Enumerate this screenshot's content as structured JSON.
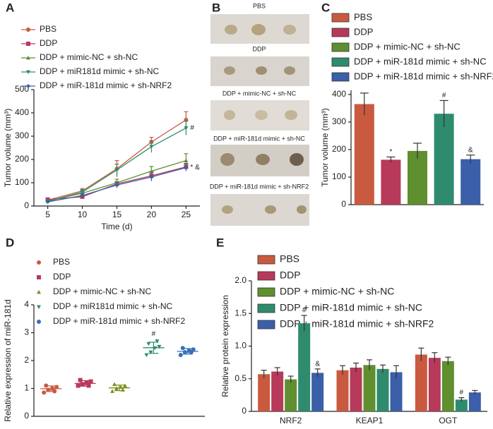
{
  "chart_data": [
    {
      "type": "line",
      "label": "A",
      "xlabel": "Time (d)",
      "ylabel": "Tumor volume (mm³)",
      "x": [
        5,
        10,
        15,
        20,
        25
      ],
      "xlim": [
        3,
        27
      ],
      "xticks": [
        5,
        10,
        15,
        20,
        25
      ],
      "ylim": [
        0,
        500
      ],
      "yticks": [
        0,
        100,
        200,
        300,
        400,
        500
      ],
      "series": [
        {
          "name": "PBS",
          "color": "#c95a3f",
          "marker": "circle",
          "values": [
            25,
            65,
            160,
            275,
            370
          ],
          "errors": [
            5,
            10,
            35,
            20,
            35
          ]
        },
        {
          "name": "DDP",
          "color": "#b83a5b",
          "marker": "square",
          "values": [
            28,
            40,
            95,
            130,
            168
          ],
          "errors": [
            4,
            6,
            10,
            18,
            15
          ]
        },
        {
          "name": "DDP + mimic-NC + sh-NC",
          "color": "#5f8f2e",
          "marker": "triangle",
          "values": [
            22,
            55,
            100,
            150,
            195
          ],
          "errors": [
            4,
            8,
            15,
            20,
            30
          ]
        },
        {
          "name": "DDP + miR181d mimic + sh-NC",
          "color": "#2e8b6e",
          "marker": "triangle-down",
          "values": [
            20,
            60,
            155,
            255,
            335
          ],
          "errors": [
            4,
            10,
            25,
            25,
            30
          ],
          "annotations": [
            null,
            null,
            null,
            null,
            "#"
          ]
        },
        {
          "name": "DDP + miR-181d mimic + sh-NRF2",
          "color": "#3b5fa8",
          "marker": "diamond",
          "values": [
            18,
            45,
            90,
            125,
            165
          ],
          "errors": [
            4,
            8,
            12,
            18,
            15
          ],
          "annotations": [
            null,
            null,
            null,
            null,
            "* &"
          ]
        }
      ]
    },
    {
      "type": "bar",
      "label": "C",
      "ylabel": "Tumor volume (mm³)",
      "ylim": [
        0,
        415
      ],
      "yticks": [
        0,
        100,
        200,
        300,
        400
      ],
      "series": [
        {
          "name": "PBS",
          "color": "#c95a3f",
          "values": [
            365
          ],
          "errors": [
            40
          ]
        },
        {
          "name": "DDP",
          "color": "#b83a5b",
          "values": [
            163
          ],
          "errors": [
            10
          ],
          "annotations": [
            "*"
          ]
        },
        {
          "name": "DDP + mimic-NC + sh-NC",
          "color": "#5f8f2e",
          "values": [
            195
          ],
          "errors": [
            28
          ]
        },
        {
          "name": "DDP + miR-181d mimic + sh-NC",
          "color": "#2e8b6e",
          "values": [
            330
          ],
          "errors": [
            48
          ],
          "annotations": [
            "#"
          ]
        },
        {
          "name": "DDP + miR-181d mimic + sh-NRF2",
          "color": "#3b5fa8",
          "values": [
            165
          ],
          "errors": [
            15
          ],
          "annotations": [
            "&"
          ]
        }
      ]
    },
    {
      "type": "scatter",
      "label": "D",
      "ylabel": "Relative expression of miR-181d",
      "ylim": [
        0,
        4
      ],
      "yticks": [
        0,
        1,
        2,
        3,
        4
      ],
      "series": [
        {
          "name": "PBS",
          "color": "#c95a3f",
          "marker": "circle",
          "values": [
            0.85,
            0.95,
            1.0,
            1.05,
            1.1,
            0.9
          ],
          "mean": 0.99,
          "sd": 0.1
        },
        {
          "name": "DDP",
          "color": "#b83a5b",
          "marker": "square",
          "values": [
            1.1,
            1.15,
            1.2,
            1.25,
            1.3,
            1.1
          ],
          "mean": 1.18,
          "sd": 0.1
        },
        {
          "name": "DDP + mimic-NC + sh-NC",
          "color": "#7a8f1e",
          "marker": "triangle",
          "values": [
            0.9,
            1.0,
            1.05,
            1.1,
            1.15,
            0.95
          ],
          "mean": 1.02,
          "sd": 0.1
        },
        {
          "name": "DDP + miR181d mimic + sh-NC",
          "color": "#2e8b6e",
          "marker": "triangle-down",
          "values": [
            2.2,
            2.3,
            2.45,
            2.5,
            2.6,
            2.7
          ],
          "mean": 2.46,
          "sd": 0.2,
          "annotation": "#"
        },
        {
          "name": "DDP + miR-181d mimic + sh-NRF2",
          "color": "#3b6fb8",
          "marker": "circle",
          "values": [
            2.2,
            2.3,
            2.35,
            2.4,
            2.45,
            2.3
          ],
          "mean": 2.33,
          "sd": 0.1
        }
      ]
    },
    {
      "type": "bar",
      "label": "E",
      "ylabel": "Relative protein expression",
      "categories": [
        "NRF2",
        "KEAP1",
        "OGT"
      ],
      "ylim": [
        0,
        2
      ],
      "yticks": [
        0,
        0.5,
        {
          "value": 1,
          "label": "1.0"
        },
        1.5,
        {
          "value": 2,
          "label": "2.0"
        }
      ],
      "series": [
        {
          "name": "PBS",
          "color": "#c95a3f",
          "values": [
            0.57,
            0.63,
            0.87
          ],
          "errors": [
            0.06,
            0.07,
            0.1
          ]
        },
        {
          "name": "DDP",
          "color": "#b83a5b",
          "values": [
            0.61,
            0.67,
            0.82
          ],
          "errors": [
            0.06,
            0.07,
            0.08
          ]
        },
        {
          "name": "DDP + mimic-NC + sh-NC",
          "color": "#5f8f2e",
          "values": [
            0.49,
            0.71,
            0.77
          ],
          "errors": [
            0.05,
            0.08,
            0.06
          ]
        },
        {
          "name": "DDP + miR-181d mimic + sh-NC",
          "color": "#2e8b6e",
          "values": [
            1.35,
            0.65,
            0.18
          ],
          "errors": [
            0.12,
            0.06,
            0.03
          ],
          "annotations": [
            "#",
            null,
            "#"
          ]
        },
        {
          "name": "DDP + miR-181d mimic + sh-NRF2",
          "color": "#3b5fa8",
          "values": [
            0.59,
            0.6,
            0.29
          ],
          "errors": [
            0.06,
            0.1,
            0.03
          ],
          "annotations": [
            "&",
            null,
            null
          ]
        }
      ]
    }
  ],
  "photos": {
    "label": "B",
    "rows": [
      "PBS",
      "DDP",
      "DDP + mimic-NC + sh-NC",
      "DDP + miR-181d mimic + sh-NC",
      "DDP + miR-181d mimic + sh-NRF2"
    ]
  }
}
